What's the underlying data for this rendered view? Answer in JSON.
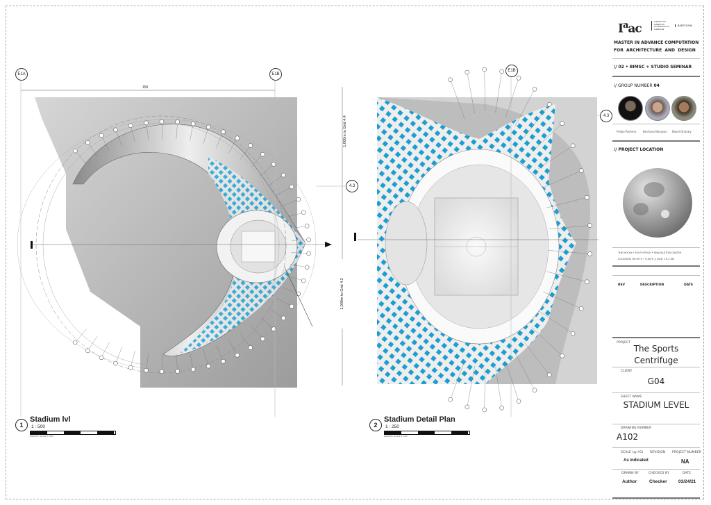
{
  "sheet": {
    "logo": {
      "mark": "Iaac",
      "subtitle": "Institute for advanced architecture of Catalonia",
      "city": "BARCELONA"
    },
    "program": [
      "MASTER IN ADVANCE COMPUTATION",
      "FOR  ARCHITECTURE  AND  DESIGN"
    ],
    "seminar": "// 02 • BIMSC + STUDIO SEMINAR",
    "group_label": "// GROUP NUMBER",
    "group_number": "04",
    "members": [
      "Felipe Romero",
      "Keshava Narayan",
      "Basel Ghoraly"
    ],
    "location_heading": "// PROJECT LOCATION",
    "location_line1": "THE MOON  •  SOUTH POLE  •  SHACKLETON CRATER",
    "location_line2": "LOCATION: 89.90°S  •  0.00°E   //   SIZE: 19.2 KM",
    "revisions_header": {
      "rev": "REV",
      "description": "DESCRIPTION",
      "date": "DATE"
    },
    "project_label": "PROJECT",
    "project_name": [
      "The Sports",
      "Centrifuge"
    ],
    "client_label": "CLIENT",
    "client": "G04",
    "sheet_name_label": "SHEET NAME",
    "sheet_name": "STADIUM LEVEL",
    "drawing_number_label": "DRAWING NUMBER",
    "drawing_number": "A102",
    "scale_label": "SCALE (@ A1)",
    "revision_label": "REVISION",
    "project_number_label": "PROJECT NUMBER",
    "scale": "As indicated",
    "project_number": "NA",
    "drawn_by_label": "DRAWN BY",
    "checked_by_label": "CHECKED BY",
    "date_label": "DATE",
    "drawn_by": "Author",
    "checked_by": "Checker",
    "date": "03/24/21"
  },
  "views": [
    {
      "number": "1",
      "title": "Stadium lvl",
      "scale": "1 : 500",
      "scalebar_caption": "GRAPHIC SCALE 1:500"
    },
    {
      "number": "2",
      "title": "Stadium Detail Plan",
      "scale": "1 : 250",
      "scalebar_caption": "GRAPHIC SCALE 1:250"
    }
  ],
  "annotations": {
    "grid_e1a": "E1A",
    "grid_e1b": "E1B",
    "grid_e1b_2": "E1B",
    "grid_43": "4.3",
    "grid_43_2": "4.3",
    "dimension_top": "150",
    "dim_to_44": "1,000m to Grid 4.4",
    "dim_to_42": "1,000m to Grid 4.2",
    "section_mark": "I",
    "section_mark_2": "I"
  },
  "colors": {
    "facade_blue": "#1fa6d8",
    "plan_gray": "#b9b9b9",
    "line": "#333333"
  }
}
